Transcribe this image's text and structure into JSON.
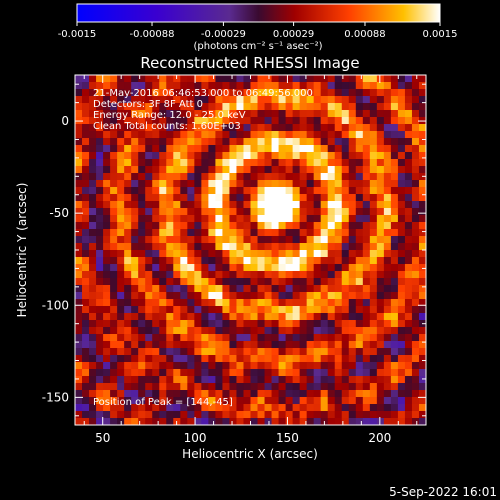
{
  "chart_data": {
    "type": "heatmap",
    "title": "Reconstructed RHESSI Image",
    "xlabel": "Heliocentric X (arcsec)",
    "ylabel": "Heliocentric Y (arcsec)",
    "xlim": [
      35,
      225
    ],
    "ylim": [
      -165,
      25
    ],
    "x_ticks": [
      50,
      100,
      150,
      200
    ],
    "y_ticks": [
      0,
      -50,
      -100,
      -150
    ],
    "colorbar": {
      "ticks": [
        "-0.0015",
        "-0.00088",
        "-0.00029",
        "0.00029",
        "0.00088",
        "0.0015"
      ],
      "range": [
        -0.0015,
        0.0015
      ],
      "label": "(photons cm⁻² s⁻¹ asec⁻²)"
    },
    "info_lines": [
      "21-May-2016 06:46:53.000 to 06:49:56.000",
      "Detectors: 3F 8F  Att 0",
      "Energy Range: 12.0 - 25.0 keV",
      "Clean    Total counts: 1.60E+03"
    ],
    "peak_text": "Position of Peak = [144,-45]",
    "peak_position": [
      144,
      -45
    ],
    "footer_date": "5-Sep-2022 16:01",
    "colors": {
      "low": "#0000ff",
      "mid": "#ffffff",
      "high": "#ffff00",
      "background": "#000000"
    }
  }
}
